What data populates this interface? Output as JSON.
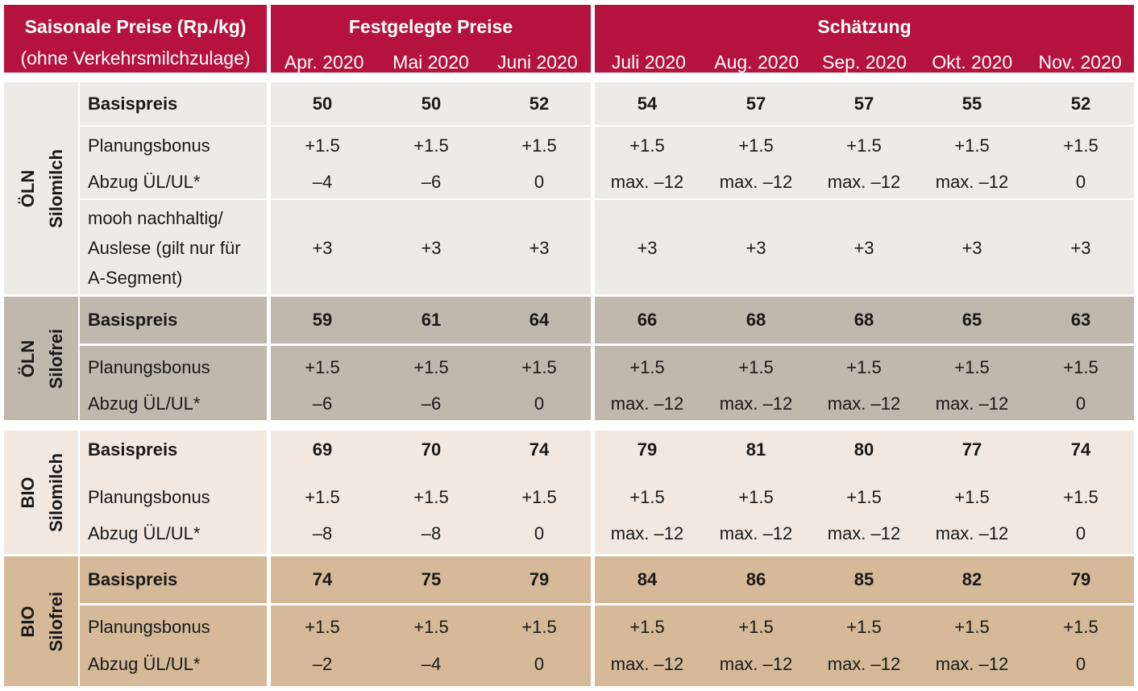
{
  "header": {
    "title_line1": "Saisonale Preise (Rp./kg)",
    "title_line2": "(ohne Verkehrsmilchzulage)",
    "group_fixed": "Festgelegte Preise",
    "group_estimate": "Schätzung",
    "months": [
      "Apr. 2020",
      "Mai 2020",
      "Juni 2020",
      "Juli 2020",
      "Aug. 2020",
      "Sep. 2020",
      "Okt. 2020",
      "Nov. 2020"
    ]
  },
  "sections": [
    {
      "label1": "ÖLN",
      "label2": "Silomilch",
      "color": "#ecebe7",
      "rows": [
        {
          "label": "Basispreis",
          "values": [
            "50",
            "50",
            "52",
            "54",
            "57",
            "57",
            "55",
            "52"
          ]
        },
        {
          "label": "Planungsbonus",
          "values": [
            "+1.5",
            "+1.5",
            "+1.5",
            "+1.5",
            "+1.5",
            "+1.5",
            "+1.5",
            "+1.5"
          ]
        },
        {
          "label": "Abzug ÜL/UL*",
          "values": [
            "–4",
            "–6",
            "0",
            "max. –12",
            "max. –12",
            "max. –12",
            "max. –12",
            "0"
          ]
        },
        {
          "label_lines": [
            "mooh nachhaltig/",
            "Auslese (gilt nur für",
            "A-Segment)"
          ],
          "values": [
            "+3",
            "+3",
            "+3",
            "+3",
            "+3",
            "+3",
            "+3",
            "+3"
          ]
        }
      ]
    },
    {
      "label1": "ÖLN",
      "label2": "Silofrei",
      "color": "#bfb8ac",
      "rows": [
        {
          "label": "Basispreis",
          "values": [
            "59",
            "61",
            "64",
            "66",
            "68",
            "68",
            "65",
            "63"
          ]
        },
        {
          "label": "Planungsbonus",
          "values": [
            "+1.5",
            "+1.5",
            "+1.5",
            "+1.5",
            "+1.5",
            "+1.5",
            "+1.5",
            "+1.5"
          ]
        },
        {
          "label": "Abzug ÜL/UL*",
          "values": [
            "–6",
            "–6",
            "0",
            "max. –12",
            "max. –12",
            "max. –12",
            "max. –12",
            "0"
          ]
        }
      ]
    },
    {
      "label1": "BIO",
      "label2": "Silomilch",
      "color": "#f2e8e0",
      "rows": [
        {
          "label": "Basispreis",
          "values": [
            "69",
            "70",
            "74",
            "79",
            "81",
            "80",
            "77",
            "74"
          ]
        },
        {
          "label": "Planungsbonus",
          "values": [
            "+1.5",
            "+1.5",
            "+1.5",
            "+1.5",
            "+1.5",
            "+1.5",
            "+1.5",
            "+1.5"
          ]
        },
        {
          "label": "Abzug ÜL/UL*",
          "values": [
            "–8",
            "–8",
            "0",
            "max. –12",
            "max. –12",
            "max. –12",
            "max. –12",
            "0"
          ]
        }
      ]
    },
    {
      "label1": "BIO",
      "label2": "Silofrei",
      "color": "#d5b998",
      "rows": [
        {
          "label": "Basispreis",
          "values": [
            "74",
            "75",
            "79",
            "84",
            "86",
            "85",
            "82",
            "79"
          ]
        },
        {
          "label": "Planungsbonus",
          "values": [
            "+1.5",
            "+1.5",
            "+1.5",
            "+1.5",
            "+1.5",
            "+1.5",
            "+1.5",
            "+1.5"
          ]
        },
        {
          "label": "Abzug ÜL/UL*",
          "values": [
            "–2",
            "–4",
            "0",
            "max. –12",
            "max. –12",
            "max. –12",
            "max. –12",
            "0"
          ]
        }
      ]
    }
  ]
}
